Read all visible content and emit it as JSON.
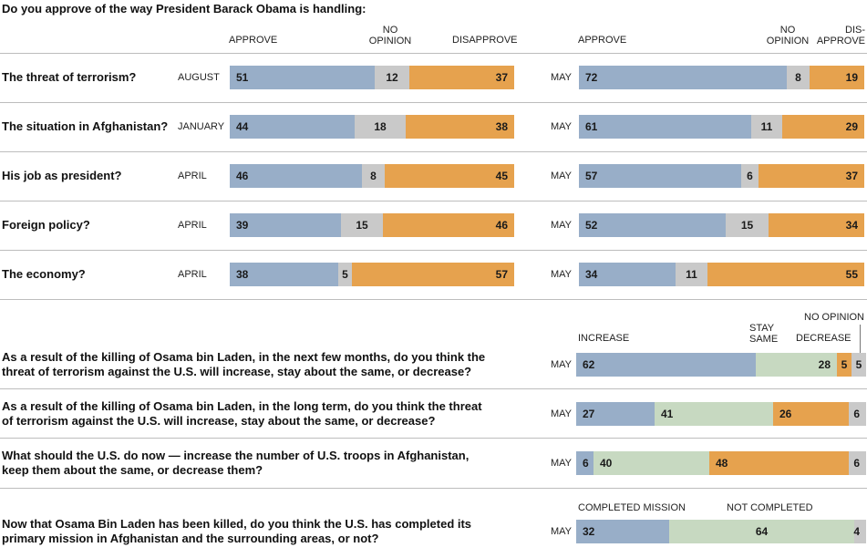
{
  "title": "Do you approve of the way President Barack Obama is handling:",
  "colors": {
    "approve": "#98aec8",
    "no_opinion": "#c9c9c9",
    "disapprove": "#e6a24e",
    "stay_same": "#c7d9c1",
    "rule": "#bdbdbd"
  },
  "approval_headers": {
    "left": {
      "approve": "APPROVE",
      "no_opinion": "NO\nOPINION",
      "disapprove": "DISAPPROVE"
    },
    "right": {
      "approve": "APPROVE",
      "no_opinion": "NO\nOPINION",
      "disapprove": "DIS-\nAPPROVE"
    }
  },
  "survey_headers": {
    "increase": "INCREASE",
    "stay_same": "STAY\nSAME",
    "decrease": "DECREASE",
    "no_opinion": "NO OPINION"
  },
  "mission_headers": {
    "completed": "COMPLETED MISSION",
    "not_completed": "NOT COMPLETED"
  },
  "chart_data": [
    {
      "type": "bar",
      "stacked": true,
      "orientation": "horizontal",
      "title": "Do you approve of the way President Barack Obama is handling:",
      "categories": [
        "The threat of terrorism?",
        "The situation in Afghanistan?",
        "His job as president?",
        "Foreign policy?",
        "The economy?"
      ],
      "left_periods": [
        "AUGUST",
        "JANUARY",
        "APRIL",
        "APRIL",
        "APRIL"
      ],
      "right_period": "MAY",
      "left_series": [
        {
          "name": "APPROVE",
          "values": [
            51,
            44,
            46,
            39,
            38
          ]
        },
        {
          "name": "NO OPINION",
          "values": [
            12,
            18,
            8,
            15,
            5
          ]
        },
        {
          "name": "DISAPPROVE",
          "values": [
            37,
            38,
            45,
            46,
            57
          ]
        }
      ],
      "right_series": [
        {
          "name": "APPROVE",
          "values": [
            72,
            61,
            57,
            52,
            34
          ]
        },
        {
          "name": "NO OPINION",
          "values": [
            8,
            11,
            6,
            15,
            11
          ]
        },
        {
          "name": "DIS-APPROVE",
          "values": [
            19,
            29,
            37,
            34,
            55
          ]
        }
      ]
    },
    {
      "type": "bar",
      "stacked": true,
      "orientation": "horizontal",
      "period": "MAY",
      "categories": [
        "As a result of the killing of Osama bin Laden, in the next few months, do you think the threat of terrorism against the U.S. will increase, stay about the same, or decrease?",
        "As a result of the killing of Osama bin Laden, in the long term, do you think the threat of terrorism against the U.S. will increase, stay about the same, or decrease?",
        "What should the U.S. do now — increase the number of U.S. troops in Afghanistan, keep them about the same, or decrease them?"
      ],
      "series": [
        {
          "name": "INCREASE",
          "values": [
            62,
            27,
            6
          ]
        },
        {
          "name": "STAY SAME",
          "values": [
            28,
            41,
            40
          ]
        },
        {
          "name": "DECREASE",
          "values": [
            5,
            26,
            48
          ]
        },
        {
          "name": "NO OPINION",
          "values": [
            5,
            6,
            6
          ]
        }
      ]
    },
    {
      "type": "bar",
      "stacked": true,
      "orientation": "horizontal",
      "period": "MAY",
      "categories": [
        "Now that Osama Bin Laden has been killed, do you think the U.S. has completed its primary mission in Afghanistan and the surrounding areas, or not?"
      ],
      "series": [
        {
          "name": "COMPLETED MISSION",
          "values": [
            32
          ]
        },
        {
          "name": "NOT COMPLETED",
          "values": [
            64
          ]
        },
        {
          "name": "NO OPINION",
          "values": [
            4
          ]
        }
      ]
    }
  ]
}
